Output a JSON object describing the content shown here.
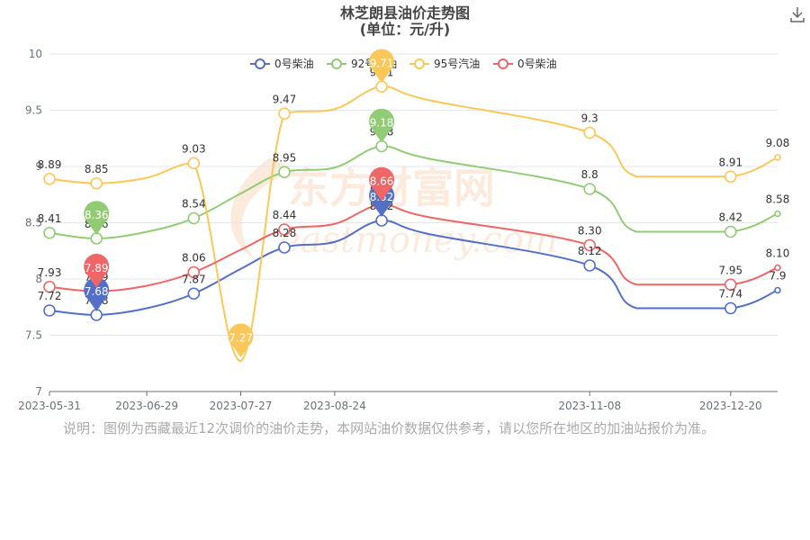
{
  "chart_data": {
    "type": "line",
    "title": "林芝朗县油价走势图",
    "subtitle": "(单位：元/升)",
    "xlabel": "",
    "ylabel": "",
    "ylim": [
      7,
      10
    ],
    "y_ticks": [
      "7",
      "7.5",
      "8",
      "8.5",
      "9",
      "9.5",
      "10"
    ],
    "x_ticks": [
      "2023-05-31",
      "2023-06-29",
      "2023-07-27",
      "2023-08-24",
      "2023-11-08",
      "2023-12-20"
    ],
    "x": [
      "2023-05-31",
      "2023-06-14",
      "2023-06-29",
      "2023-07-13",
      "2023-07-27",
      "2023-08-09",
      "2023-08-24",
      "2023-09-07",
      "2023-09-21",
      "2023-11-08",
      "2023-11-22",
      "2023-12-20",
      "2024-01-03"
    ],
    "grid": true,
    "legend": "top-center",
    "series": [
      {
        "name": "0号柴油",
        "color": "#5470c6",
        "values": [
          7.72,
          7.68,
          7.74,
          7.87,
          8.09,
          8.28,
          8.33,
          8.52,
          8.4,
          8.12,
          7.74,
          7.74,
          7.9
        ],
        "labels": [
          "7.72",
          "7.68",
          "7.74",
          "7.87",
          "8.09",
          "8.28",
          "8.33",
          "8.52",
          "8.4",
          "8.12",
          "7.74",
          "7.74",
          "7.9"
        ]
      },
      {
        "name": "92号汽油",
        "color": "#91cc75",
        "values": [
          8.41,
          8.36,
          8.42,
          8.54,
          8.76,
          8.95,
          8.99,
          9.18,
          9.07,
          8.8,
          8.42,
          8.42,
          8.58
        ],
        "labels": [
          "8.41",
          "8.36",
          "8.42",
          "8.54",
          "8.76",
          "8.95",
          "8.99",
          "9.18",
          "9.07",
          "8.8",
          "8.42",
          "8.42",
          "8.58"
        ]
      },
      {
        "name": "95号汽油",
        "color": "#fac858",
        "values": [
          8.89,
          8.85,
          8.9,
          9.03,
          7.27,
          9.47,
          9.51,
          9.71,
          9.59,
          9.3,
          8.91,
          8.91,
          9.08
        ],
        "labels": [
          "8.89",
          "8.85",
          "8.9",
          "9.03",
          "7.27",
          "9.47",
          "9.51",
          "9.71",
          "9.59",
          "9.3",
          "8.91",
          "8.91",
          "9.08"
        ]
      },
      {
        "name": "0号柴油",
        "color": "#ee6666",
        "values": [
          7.93,
          7.89,
          7.94,
          8.06,
          8.26,
          8.44,
          8.49,
          8.66,
          8.55,
          8.3,
          7.95,
          7.95,
          8.1
        ],
        "labels": [
          "7.93",
          "7.89",
          "7.94",
          "8.06",
          "8.26",
          "8.44",
          "8.49",
          "8.66",
          "8.55",
          "8.30",
          "7.95",
          "7.95",
          "8.10"
        ]
      }
    ],
    "legend_entries": [
      "0号柴油",
      "92号汽油",
      "95号汽油",
      "0号柴油"
    ],
    "markers": [
      {
        "series": 0,
        "point": 1,
        "kind": "min",
        "label": "7.68"
      },
      {
        "series": 0,
        "point": 7,
        "kind": "max",
        "label": "8.52"
      },
      {
        "series": 1,
        "point": 1,
        "kind": "min",
        "label": "8.36"
      },
      {
        "series": 1,
        "point": 7,
        "kind": "max",
        "label": "9.18"
      },
      {
        "series": 2,
        "point": 4,
        "kind": "min",
        "label": "7.27"
      },
      {
        "series": 2,
        "point": 7,
        "kind": "max",
        "label": "9.71"
      },
      {
        "series": 3,
        "point": 1,
        "kind": "min",
        "label": "7.89"
      },
      {
        "series": 3,
        "point": 7,
        "kind": "max",
        "label": "8.66"
      }
    ],
    "watermark": "东方财富网 eastmoney.com"
  },
  "note": "说明：图例为西藏最近12次调价的油价走势，本网站油价数据仅供参考，请以您所在地区的加油站报价为准。",
  "toolbar": {
    "download_icon": "download-icon"
  }
}
